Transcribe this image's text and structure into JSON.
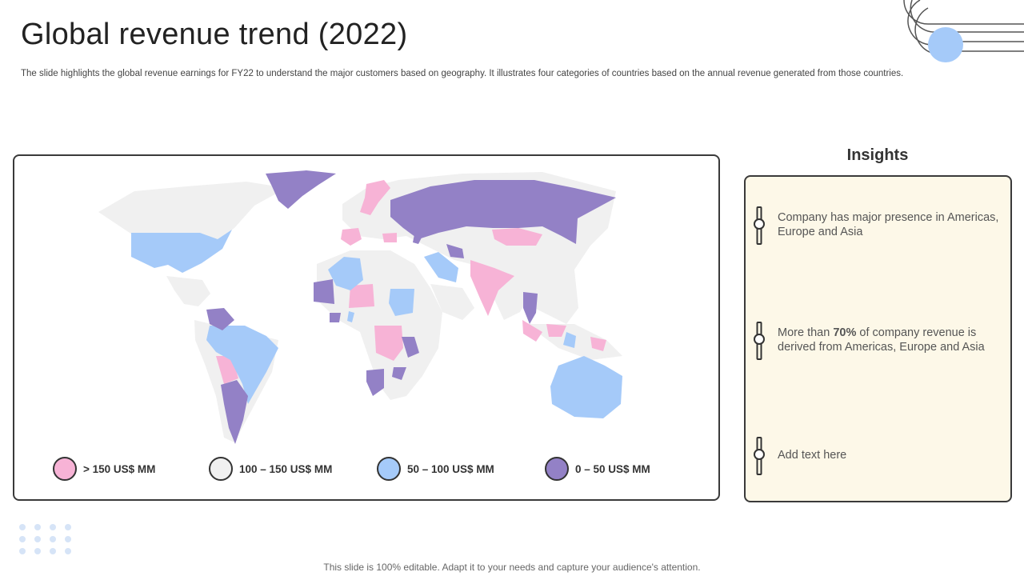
{
  "header": {
    "title": "Global revenue trend (2022)",
    "subtitle": "The slide highlights the global revenue earnings for FY22 to understand the major customers based on geography. It illustrates four categories of countries based on the annual revenue generated from those countries."
  },
  "colors": {
    "gt150": "#f7b3d6",
    "r100_150": "#f0f0f0",
    "r50_100": "#a5caf9",
    "r0_50": "#9381c6",
    "accent_circle": "#a5caf9",
    "insights_bg": "#fdf8e8"
  },
  "legend": [
    {
      "label": "> 150 US$ MM",
      "color": "#f7b3d6"
    },
    {
      "label": "100 – 150 US$ MM",
      "color": "#f0f0f0"
    },
    {
      "label": "50 – 100 US$ MM",
      "color": "#a5caf9"
    },
    {
      "label": "0 – 50 US$ MM",
      "color": "#9381c6"
    }
  ],
  "insights": {
    "title": "Insights",
    "items": [
      {
        "text": "Company has major presence in Americas, Europe and Asia"
      },
      {
        "pre": "More than ",
        "bold": "70%",
        "post": " of company revenue is derived from Americas, Europe and Asia"
      },
      {
        "text": "Add text here"
      }
    ]
  },
  "footer": {
    "text": "This slide is 100% editable. Adapt it to your needs and capture your audience's attention."
  }
}
